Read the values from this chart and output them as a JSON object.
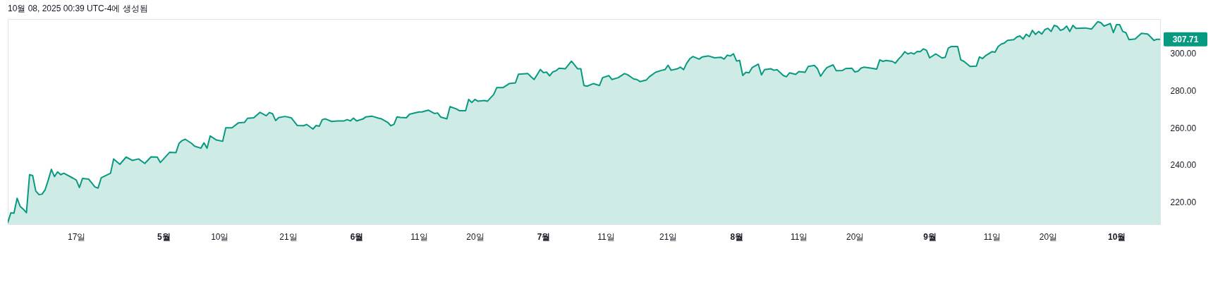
{
  "chart_data": {
    "type": "area",
    "annotations": [
      "10월 08, 2025 00:39 UTC-4에 생성됨",
      {
        "text": "307.71",
        "x": "2025-10-08",
        "y": 307.71
      }
    ],
    "xlim": [
      "2025-04-06",
      "2025-10-08"
    ],
    "xticks": [
      {
        "value": "2025-04-17",
        "label": "17일"
      },
      {
        "value": "2025-05-01",
        "label": "5월"
      },
      {
        "value": "2025-05-10",
        "label": "10일"
      },
      {
        "value": "2025-05-21",
        "label": "21일"
      },
      {
        "value": "2025-06-01",
        "label": "6월"
      },
      {
        "value": "2025-06-11",
        "label": "11일"
      },
      {
        "value": "2025-06-20",
        "label": "20일"
      },
      {
        "value": "2025-07-01",
        "label": "7월"
      },
      {
        "value": "2025-07-11",
        "label": "11일"
      },
      {
        "value": "2025-07-21",
        "label": "21일"
      },
      {
        "value": "2025-08-01",
        "label": "8월"
      },
      {
        "value": "2025-08-11",
        "label": "11일"
      },
      {
        "value": "2025-08-20",
        "label": "20일"
      },
      {
        "value": "2025-09-01",
        "label": "9월"
      },
      {
        "value": "2025-09-11",
        "label": "11일"
      },
      {
        "value": "2025-09-20",
        "label": "20일"
      },
      {
        "value": "2025-10-01",
        "label": "10월"
      }
    ],
    "ylim": [
      208,
      318.6
    ],
    "yticks": [
      {
        "value": 220,
        "label": "220.00"
      },
      {
        "value": 240,
        "label": "240.00"
      },
      {
        "value": 260,
        "label": "260.00"
      },
      {
        "value": 280,
        "label": "280.00"
      },
      {
        "value": 300,
        "label": "300.00"
      }
    ],
    "x": [
      "2025-04-06",
      "2025-04-06T12:00",
      "2025-04-07",
      "2025-04-07T12:00",
      "2025-04-08",
      "2025-04-08T12:00",
      "2025-04-09",
      "2025-04-09T12:00",
      "2025-04-10",
      "2025-04-10T12:00",
      "2025-04-11",
      "2025-04-11T12:00",
      "2025-04-12",
      "2025-04-12T12:00",
      "2025-04-13",
      "2025-04-13T12:00",
      "2025-04-14",
      "2025-04-14T12:00",
      "2025-04-15",
      "2025-04-16T12:00",
      "2025-04-17",
      "2025-04-17T12:00",
      "2025-04-18",
      "2025-04-19",
      "2025-04-20",
      "2025-04-20T12:00",
      "2025-04-21",
      "2025-04-22T12:00",
      "2025-04-23",
      "2025-04-24",
      "2025-04-25",
      "2025-04-26",
      "2025-04-27",
      "2025-04-28",
      "2025-04-29",
      "2025-04-30",
      "2025-04-30T12:00",
      "2025-05-02",
      "2025-05-03",
      "2025-05-03T12:00",
      "2025-05-04",
      "2025-05-04T12:00",
      "2025-05-05T12:00",
      "2025-05-06",
      "2025-05-07",
      "2025-05-07T12:00",
      "2025-05-08",
      "2025-05-08T12:00",
      "2025-05-09T12:00",
      "2025-05-10T12:00",
      "2025-05-11",
      "2025-05-12",
      "2025-05-13",
      "2025-05-14",
      "2025-05-14T12:00",
      "2025-05-15T12:00",
      "2025-05-16T12:00",
      "2025-05-17T12:00",
      "2025-05-18",
      "2025-05-18T12:00",
      "2025-05-19",
      "2025-05-19T12:00",
      "2025-05-20T12:00",
      "2025-05-21T12:00",
      "2025-05-22T12:00",
      "2025-05-23T12:00",
      "2025-05-24",
      "2025-05-25",
      "2025-05-25T12:00",
      "2025-05-26",
      "2025-05-26T12:00",
      "2025-05-27",
      "2025-05-28",
      "2025-05-29",
      "2025-05-30",
      "2025-05-30T12:00",
      "2025-05-31",
      "2025-05-31T12:00",
      "2025-06-01",
      "2025-06-02",
      "2025-06-02T12:00",
      "2025-06-03T12:00",
      "2025-06-04T12:00",
      "2025-06-05",
      "2025-06-06",
      "2025-06-06T12:00",
      "2025-06-07",
      "2025-06-07T12:00",
      "2025-06-08",
      "2025-06-09",
      "2025-06-09T12:00",
      "2025-06-11",
      "2025-06-11T12:00",
      "2025-06-12T12:00",
      "2025-06-13T12:00",
      "2025-06-14",
      "2025-06-14T12:00",
      "2025-06-15T12:00",
      "2025-06-16",
      "2025-06-17",
      "2025-06-17T12:00",
      "2025-06-18T12:00",
      "2025-06-19",
      "2025-06-19T12:00",
      "2025-06-20",
      "2025-06-20T12:00",
      "2025-06-21T12:00",
      "2025-06-22",
      "2025-06-23",
      "2025-06-23T12:00",
      "2025-06-24T12:00",
      "2025-06-25T12:00",
      "2025-06-26T12:00",
      "2025-06-27",
      "2025-06-28T12:00",
      "2025-06-29",
      "2025-06-29T12:00",
      "2025-06-30T12:00",
      "2025-07-01",
      "2025-07-01T12:00",
      "2025-07-02",
      "2025-07-02T12:00",
      "2025-07-03",
      "2025-07-03T12:00",
      "2025-07-04T12:00",
      "2025-07-05T12:00",
      "2025-07-06T12:00",
      "2025-07-07",
      "2025-07-07T12:00",
      "2025-07-08",
      "2025-07-09",
      "2025-07-10",
      "2025-07-10T12:00",
      "2025-07-11T12:00",
      "2025-07-12",
      "2025-07-13",
      "2025-07-14",
      "2025-07-14T12:00",
      "2025-07-15T12:00",
      "2025-07-16",
      "2025-07-16T12:00",
      "2025-07-17T12:00",
      "2025-07-18",
      "2025-07-19",
      "2025-07-20",
      "2025-07-20T12:00",
      "2025-07-21",
      "2025-07-21T12:00",
      "2025-07-22T12:00",
      "2025-07-23",
      "2025-07-23T12:00",
      "2025-07-24",
      "2025-07-24T12:00",
      "2025-07-25",
      "2025-07-26",
      "2025-07-26T12:00",
      "2025-07-27T12:00",
      "2025-07-28T12:00",
      "2025-07-29T12:00",
      "2025-07-30",
      "2025-07-30T12:00",
      "2025-07-31",
      "2025-07-31T12:00",
      "2025-08-01",
      "2025-08-01T12:00",
      "2025-08-02",
      "2025-08-02T12:00",
      "2025-08-03",
      "2025-08-03T12:00",
      "2025-08-04T12:00",
      "2025-08-05",
      "2025-08-05T12:00",
      "2025-08-06T12:00",
      "2025-08-07",
      "2025-08-07T12:00",
      "2025-08-08T12:00",
      "2025-08-09",
      "2025-08-09T12:00",
      "2025-08-10T12:00",
      "2025-08-11",
      "2025-08-12",
      "2025-08-12T12:00",
      "2025-08-13T12:00",
      "2025-08-14",
      "2025-08-14T12:00",
      "2025-08-15",
      "2025-08-15T12:00",
      "2025-08-16T12:00",
      "2025-08-17",
      "2025-08-18",
      "2025-08-18T12:00",
      "2025-08-19T12:00",
      "2025-08-20",
      "2025-08-20T12:00",
      "2025-08-21",
      "2025-08-21T12:00",
      "2025-08-22T12:00",
      "2025-08-23T12:00",
      "2025-08-24",
      "2025-08-24T12:00",
      "2025-08-25",
      "2025-08-26",
      "2025-08-26T12:00",
      "2025-08-27",
      "2025-08-27T12:00",
      "2025-08-28",
      "2025-08-28T12:00",
      "2025-08-29",
      "2025-08-29T12:00",
      "2025-08-30",
      "2025-08-30T12:00",
      "2025-08-31",
      "2025-08-31T12:00",
      "2025-09-01",
      "2025-09-02",
      "2025-09-03",
      "2025-09-03T12:00",
      "2025-09-04",
      "2025-09-04T12:00",
      "2025-09-05T12:00",
      "2025-09-06",
      "2025-09-06T12:00",
      "2025-09-07T12:00",
      "2025-09-08T12:00",
      "2025-09-09",
      "2025-09-09T12:00",
      "2025-09-10",
      "2025-09-11",
      "2025-09-11T12:00",
      "2025-09-12",
      "2025-09-12T12:00",
      "2025-09-13",
      "2025-09-13T12:00",
      "2025-09-14T12:00",
      "2025-09-15",
      "2025-09-15T12:00",
      "2025-09-16",
      "2025-09-16T12:00",
      "2025-09-17",
      "2025-09-17T12:00",
      "2025-09-18",
      "2025-09-18T12:00",
      "2025-09-19",
      "2025-09-19T12:00",
      "2025-09-20",
      "2025-09-20T12:00",
      "2025-09-21",
      "2025-09-21T12:00",
      "2025-09-22",
      "2025-09-22T12:00",
      "2025-09-23",
      "2025-09-23T12:00",
      "2025-09-24",
      "2025-09-24T12:00",
      "2025-09-26",
      "2025-09-27",
      "2025-09-28",
      "2025-09-28T12:00",
      "2025-09-29",
      "2025-09-30",
      "2025-09-30T12:00",
      "2025-10-01",
      "2025-10-01T12:00",
      "2025-10-02",
      "2025-10-02T12:00",
      "2025-10-03",
      "2025-10-04",
      "2025-10-05",
      "2025-10-06",
      "2025-10-06T12:00",
      "2025-10-07",
      "2025-10-07T12:00",
      "2025-10-08"
    ],
    "series": [
      {
        "color": "#089981",
        "values": [
          208.9,
          214.2,
          214.0,
          222.0,
          217.6,
          216.1,
          214.2,
          234.7,
          234.2,
          225.9,
          224.0,
          224.2,
          226.6,
          231.8,
          237.6,
          233.7,
          236.2,
          234.7,
          235.5,
          232.8,
          231.8,
          227.8,
          232.7,
          232.3,
          228.1,
          227.5,
          233.0,
          235.5,
          243.2,
          240.3,
          244.2,
          242.4,
          243.2,
          240.8,
          244.3,
          244.2,
          241.3,
          246.8,
          246.6,
          251.6,
          253.1,
          253.8,
          251.6,
          250.1,
          249.0,
          251.9,
          249.0,
          255.6,
          253.4,
          252.7,
          260.0,
          260.0,
          262.6,
          262.9,
          265.1,
          265.4,
          268.3,
          266.5,
          268.2,
          267.6,
          263.9,
          265.5,
          266.1,
          265.4,
          261.2,
          261.1,
          261.8,
          259.3,
          261.2,
          260.8,
          264.4,
          264.8,
          263.4,
          263.7,
          263.7,
          264.4,
          263.7,
          265.2,
          263.7,
          264.7,
          265.9,
          266.2,
          265.2,
          264.8,
          262.9,
          261.1,
          261.8,
          265.9,
          265.6,
          265.4,
          267.3,
          268.5,
          268.5,
          269.5,
          267.7,
          268.0,
          265.8,
          264.8,
          271.4,
          270.2,
          269.2,
          269.2,
          275.3,
          273.6,
          275.3,
          274.3,
          274.7,
          274.3,
          277.9,
          281.6,
          281.6,
          283.8,
          284.2,
          288.9,
          289.2,
          287.5,
          286.0,
          291.4,
          289.7,
          290.0,
          288.0,
          290.1,
          290.7,
          292.1,
          291.8,
          295.9,
          291.8,
          291.8,
          282.8,
          282.4,
          283.8,
          282.8,
          287.0,
          288.1,
          286.0,
          287.0,
          289.2,
          288.6,
          286.3,
          286.0,
          284.9,
          285.7,
          287.5,
          289.9,
          291.0,
          291.3,
          293.7,
          291.0,
          291.8,
          292.7,
          291.3,
          294.8,
          297.2,
          298.4,
          297.0,
          298.2,
          298.7,
          297.7,
          298.0,
          297.0,
          299.1,
          298.7,
          299.9,
          296.0,
          296.3,
          288.2,
          289.9,
          289.6,
          292.4,
          294.3,
          288.5,
          291.3,
          291.8,
          291.0,
          291.3,
          288.2,
          287.5,
          289.6,
          288.8,
          290.3,
          289.9,
          293.0,
          293.6,
          291.8,
          287.8,
          290.3,
          292.4,
          293.9,
          290.8,
          290.9,
          291.9,
          292.1,
          290.1,
          290.5,
          292.2,
          292.7,
          292.2,
          291.6,
          296.6,
          295.8,
          296.3,
          295.8,
          294.8,
          297.0,
          298.7,
          301.0,
          299.8,
          300.4,
          299.8,
          301.1,
          301.0,
          302.5,
          301.7,
          297.7,
          299.8,
          297.6,
          298.0,
          303.0,
          303.8,
          303.8,
          296.6,
          295.8,
          293.0,
          293.2,
          298.2,
          297.3,
          298.9,
          301.0,
          300.7,
          303.8,
          305.1,
          305.7,
          307.1,
          307.5,
          308.9,
          309.5,
          307.8,
          310.4,
          309.1,
          312.5,
          310.3,
          311.9,
          310.5,
          312.9,
          313.6,
          311.9,
          315.2,
          314.6,
          312.5,
          313.2,
          314.8,
          311.9,
          315.2,
          313.6,
          313.8,
          313.2,
          317.2,
          316.6,
          314.8,
          316.2,
          311.3,
          315.6,
          315.6,
          311.9,
          311.3,
          307.5,
          307.9,
          310.9,
          310.5,
          308.9,
          307.1,
          307.7,
          307.71
        ]
      }
    ]
  }
}
